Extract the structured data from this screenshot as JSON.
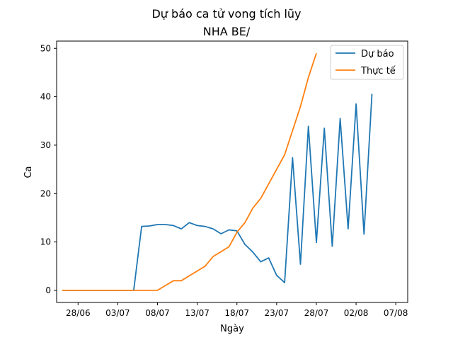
{
  "chart_data": {
    "type": "line",
    "title": "Dự báo ca tử vong tích lũy",
    "subtitle": "NHA BE/",
    "xlabel": "Ngày",
    "ylabel": "Ca",
    "x_tick_labels": [
      "28/06",
      "03/07",
      "08/07",
      "13/07",
      "18/07",
      "23/07",
      "28/07",
      "02/08",
      "07/08"
    ],
    "x_tick_days": [
      2,
      7,
      12,
      17,
      22,
      27,
      32,
      37,
      42
    ],
    "xlim": [
      -0.7,
      43.5
    ],
    "ylim": [
      -2.5,
      51.5
    ],
    "y_ticks": [
      0,
      10,
      20,
      30,
      40,
      50
    ],
    "legend_position": "top-right",
    "series": [
      {
        "name": "Dự báo",
        "color": "#1f77b4",
        "x": [
          0,
          1,
          2,
          3,
          4,
          5,
          6,
          7,
          8,
          9,
          10,
          11,
          12,
          13,
          14,
          15,
          16,
          17,
          18,
          19,
          20,
          21,
          22,
          23,
          24,
          25,
          26,
          27,
          28,
          29,
          30,
          31,
          32,
          33,
          34,
          35,
          36,
          37,
          38,
          39,
          40
        ],
        "y": [
          0,
          0,
          0,
          0,
          0,
          0,
          0,
          0,
          0,
          0,
          13.2,
          13.3,
          13.6,
          13.6,
          13.4,
          12.7,
          14.0,
          13.4,
          13.2,
          12.7,
          11.7,
          12.5,
          12.3,
          9.5,
          7.9,
          5.9,
          6.7,
          3.1,
          1.6,
          27.4,
          5.4,
          33.9,
          9.9,
          33.5,
          9.1,
          35.5,
          12.7,
          38.5,
          11.6,
          40.6,
          null
        ]
      },
      {
        "name": "Thực tế",
        "color": "#ff7f0e",
        "x": [
          0,
          1,
          2,
          3,
          4,
          5,
          6,
          7,
          8,
          9,
          10,
          11,
          12,
          13,
          14,
          15,
          16,
          17,
          18,
          19,
          20,
          21,
          22,
          23,
          24,
          25,
          26,
          27,
          28,
          29,
          30,
          31,
          32
        ],
        "y": [
          0,
          0,
          0,
          0,
          0,
          0,
          0,
          0,
          0,
          0,
          0,
          0,
          0,
          1,
          2,
          2,
          3,
          4,
          5,
          7,
          8,
          9,
          12,
          14,
          17,
          19,
          22,
          25,
          28,
          33,
          38,
          44,
          49
        ]
      }
    ]
  }
}
